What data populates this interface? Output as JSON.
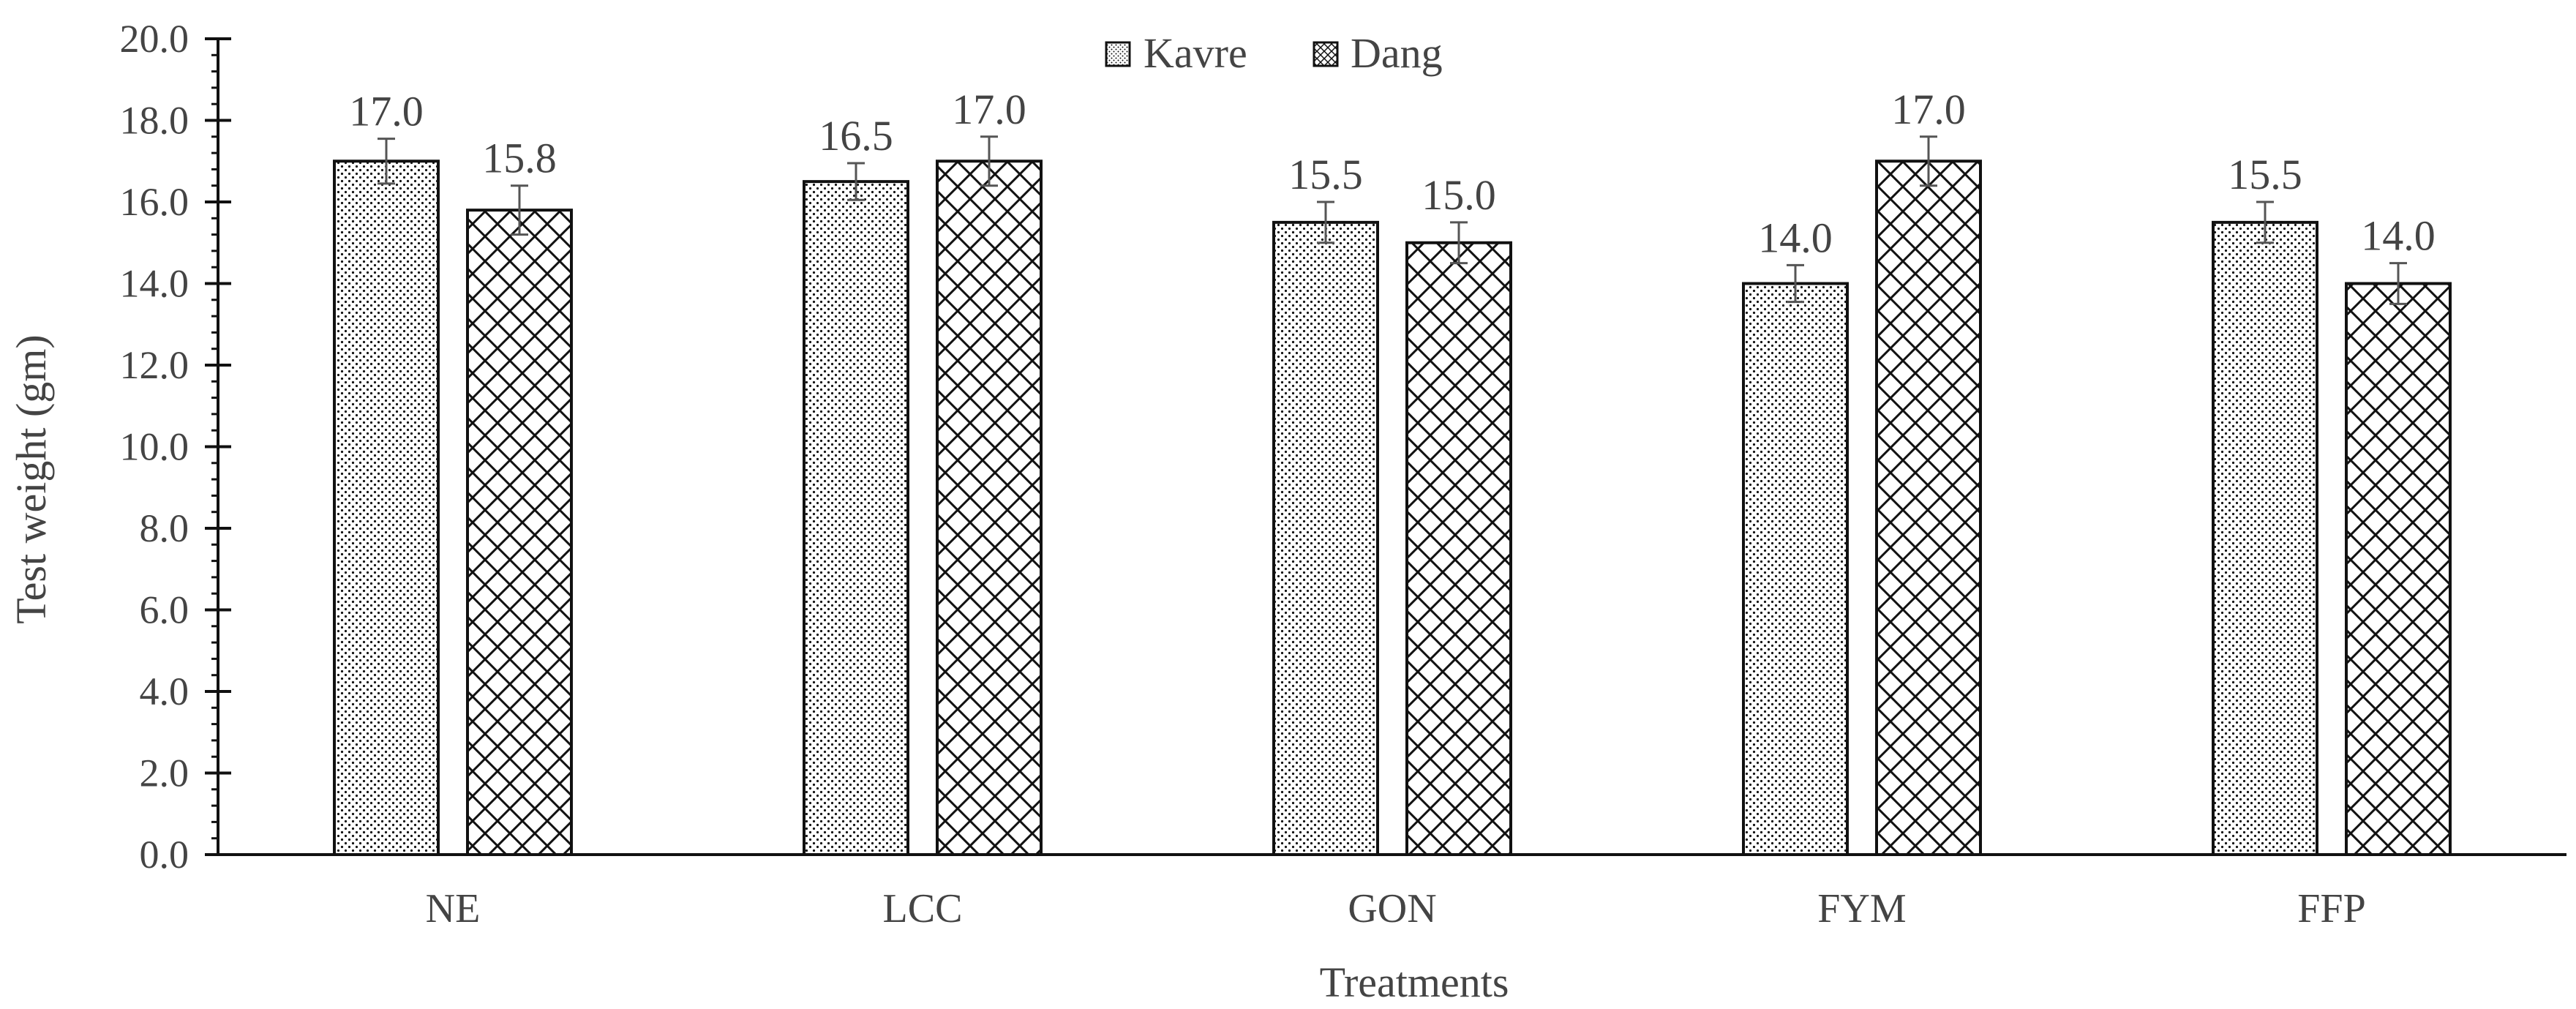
{
  "chart_data": {
    "type": "bar",
    "title": "",
    "xlabel": "Treatments",
    "ylabel": "Test weight (gm)",
    "categories": [
      "NE",
      "LCC",
      "GON",
      "FYM",
      "FFP"
    ],
    "series": [
      {
        "name": "Kavre",
        "pattern": "dots",
        "values": [
          17.0,
          16.5,
          15.5,
          14.0,
          15.5
        ],
        "labels": [
          "17.0",
          "16.5",
          "15.5",
          "14.0",
          "15.5"
        ],
        "errors": [
          0.55,
          0.45,
          0.5,
          0.45,
          0.5
        ]
      },
      {
        "name": "Dang",
        "pattern": "crosshatch",
        "values": [
          15.8,
          17.0,
          15.0,
          17.0,
          14.0
        ],
        "labels": [
          "15.8",
          "17.0",
          "15.0",
          "17.0",
          "14.0"
        ],
        "errors": [
          0.6,
          0.6,
          0.5,
          0.6,
          0.5
        ]
      }
    ],
    "ylim": [
      0,
      20
    ],
    "yticks": [
      "0.0",
      "2.0",
      "4.0",
      "6.0",
      "8.0",
      "10.0",
      "12.0",
      "14.0",
      "16.0",
      "18.0",
      "20.0"
    ],
    "grid": false,
    "legend_position": "top-center",
    "colors": {
      "bar_stroke": "#111111",
      "pattern": "#111111",
      "text": "#444444",
      "axis": "#111111"
    }
  }
}
